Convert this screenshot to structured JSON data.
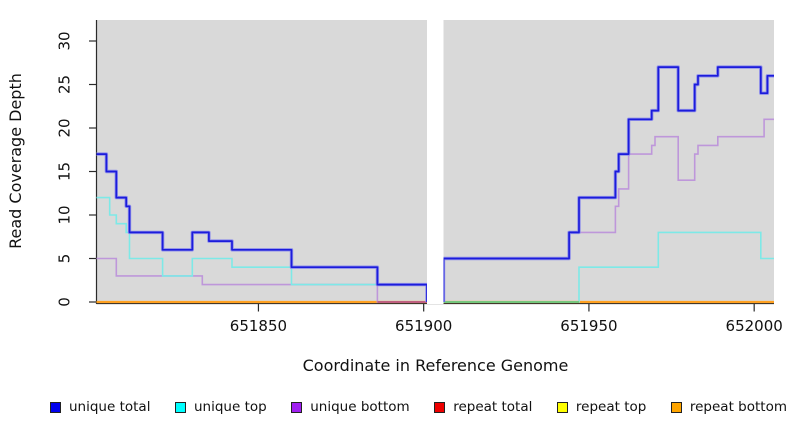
{
  "figure": {
    "xlabel": "Coordinate in Reference Genome",
    "ylabel": "Read Coverage Depth"
  },
  "chart_data": {
    "type": "line",
    "subtype": "step",
    "title": "",
    "xlabel": "Coordinate in Reference Genome",
    "ylabel": "Read Coverage Depth",
    "x_ticks": [
      651850,
      651900,
      651950,
      652000
    ],
    "y_ticks": [
      0,
      5,
      10,
      15,
      20,
      25,
      30
    ],
    "x_range": [
      651801,
      652006
    ],
    "ylim": [
      0,
      32
    ],
    "gap_x": [
      651901,
      651906
    ],
    "grid": false,
    "panel_bg": "#D9D9D9",
    "legend_position": "bottom",
    "series": [
      {
        "name": "repeat total",
        "color": "#DD2222",
        "width": 2,
        "segments": [
          {
            "steps": [
              [
                651801,
                0
              ]
            ],
            "end": 651901
          },
          {
            "steps": [
              [
                651906,
                0
              ]
            ],
            "end": 652006
          }
        ]
      },
      {
        "name": "repeat top",
        "color": "#FFFF33",
        "width": 2,
        "segments": [
          {
            "steps": [
              [
                651801,
                0
              ]
            ],
            "end": 651901
          },
          {
            "steps": [
              [
                651906,
                0
              ]
            ],
            "end": 652006
          }
        ]
      },
      {
        "name": "repeat bottom",
        "color": "#FFA121",
        "width": 2.2,
        "segments": [
          {
            "steps": [
              [
                651801,
                0
              ]
            ],
            "end": 651901
          },
          {
            "steps": [
              [
                651906,
                0
              ]
            ],
            "end": 652006
          }
        ]
      },
      {
        "name": "unique bottom",
        "color": "#BE97DA",
        "width": 1.6,
        "segments": [
          {
            "steps": [
              [
                651801,
                5
              ],
              [
                651807,
                3
              ],
              [
                651833,
                2
              ],
              [
                651886,
                0
              ]
            ],
            "end": 651901
          },
          {
            "steps": [
              [
                651906,
                0
              ],
              [
                651906,
                5
              ],
              [
                651944,
                8
              ],
              [
                651958,
                11
              ],
              [
                651959,
                13
              ],
              [
                651962,
                17
              ],
              [
                651969,
                18
              ],
              [
                651970,
                19
              ],
              [
                651977,
                14
              ],
              [
                651982,
                17
              ],
              [
                651983,
                18
              ],
              [
                651989,
                19
              ],
              [
                652003,
                21
              ]
            ],
            "end": 652006
          }
        ]
      },
      {
        "name": "unique top",
        "color": "#7DE9E7",
        "width": 1.6,
        "segments": [
          {
            "steps": [
              [
                651801,
                12
              ],
              [
                651805,
                10
              ],
              [
                651807,
                9
              ],
              [
                651810,
                8
              ],
              [
                651811,
                5
              ],
              [
                651821,
                3
              ],
              [
                651830,
                5
              ],
              [
                651842,
                4
              ],
              [
                651860,
                2
              ],
              [
                651901,
                0
              ]
            ],
            "end": 651901
          },
          {
            "steps": [
              [
                651906,
                0
              ],
              [
                651947,
                4
              ],
              [
                651971,
                8
              ],
              [
                652002,
                5
              ]
            ],
            "end": 652006
          }
        ]
      },
      {
        "name": "unique total",
        "color": "#1C1CDB",
        "halo": "#8F8FEA",
        "width": 1.7,
        "segments": [
          {
            "steps": [
              [
                651801,
                17
              ],
              [
                651804,
                15
              ],
              [
                651807,
                12
              ],
              [
                651810,
                11
              ],
              [
                651811,
                8
              ],
              [
                651821,
                6
              ],
              [
                651830,
                8
              ],
              [
                651835,
                7
              ],
              [
                651842,
                6
              ],
              [
                651860,
                4
              ],
              [
                651886,
                2
              ],
              [
                651901,
                0
              ]
            ],
            "end": 651901
          },
          {
            "steps": [
              [
                651906,
                0
              ],
              [
                651906,
                5
              ],
              [
                651944,
                8
              ],
              [
                651947,
                12
              ],
              [
                651958,
                15
              ],
              [
                651959,
                17
              ],
              [
                651962,
                21
              ],
              [
                651969,
                22
              ],
              [
                651971,
                27
              ],
              [
                651977,
                22
              ],
              [
                651982,
                25
              ],
              [
                651983,
                26
              ],
              [
                651989,
                27
              ],
              [
                652002,
                24
              ],
              [
                652004,
                26
              ]
            ],
            "end": 652006
          }
        ]
      }
    ],
    "overlap_segments": [
      {
        "x0": 651886,
        "x1": 651901,
        "y": 0,
        "color": "#C06080",
        "note": "unique bottom at zero over repeat bottom"
      },
      {
        "x0": 651906,
        "x1": 651947,
        "y": 0,
        "color": "#76C77D",
        "note": "unique top at zero over repeat bottom"
      }
    ],
    "legend": [
      {
        "label": "unique total",
        "color": "#0000EE"
      },
      {
        "label": "unique top",
        "color": "#00FFFF"
      },
      {
        "label": "unique bottom",
        "color": "#A020F0"
      },
      {
        "label": "repeat total",
        "color": "#EE0000"
      },
      {
        "label": "repeat top",
        "color": "#FFFF00"
      },
      {
        "label": "repeat bottom",
        "color": "#FFA500"
      }
    ]
  }
}
